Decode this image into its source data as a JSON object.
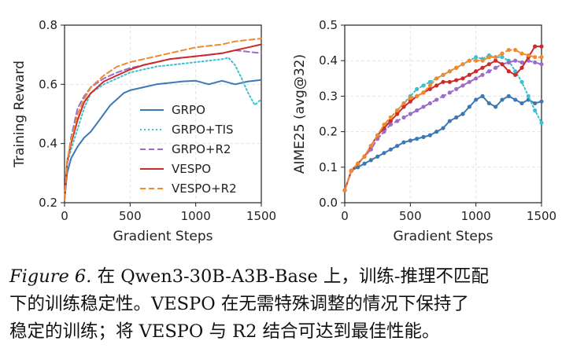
{
  "chart_data": [
    {
      "type": "line",
      "xlabel": "Gradient Steps",
      "ylabel": "Training Reward",
      "xlim": [
        0,
        1500
      ],
      "ylim": [
        0.2,
        0.8
      ],
      "xticks": [
        "0",
        "500",
        "1000",
        "1500"
      ],
      "yticks": [
        "0.2",
        "0.4",
        "0.6",
        "0.8"
      ],
      "grid": true,
      "legend": "center-right",
      "series": [
        {
          "name": "GRPO",
          "color": "#3b78b4",
          "dash": "solid",
          "markers": false,
          "x": [
            0,
            20,
            50,
            100,
            150,
            200,
            250,
            300,
            350,
            400,
            450,
            500,
            600,
            700,
            800,
            900,
            1000,
            1100,
            1200,
            1300,
            1400,
            1500
          ],
          "y": [
            0.21,
            0.3,
            0.35,
            0.39,
            0.42,
            0.44,
            0.47,
            0.5,
            0.53,
            0.55,
            0.57,
            0.58,
            0.59,
            0.6,
            0.605,
            0.61,
            0.612,
            0.6,
            0.612,
            0.6,
            0.61,
            0.615
          ]
        },
        {
          "name": "GRPO+TIS",
          "color": "#3fbfd0",
          "dash": "dotted",
          "markers": false,
          "x": [
            0,
            20,
            50,
            100,
            150,
            200,
            300,
            400,
            500,
            600,
            700,
            800,
            900,
            1000,
            1100,
            1200,
            1250,
            1300,
            1350,
            1400,
            1450,
            1500
          ],
          "y": [
            0.21,
            0.33,
            0.38,
            0.45,
            0.52,
            0.57,
            0.6,
            0.62,
            0.64,
            0.65,
            0.66,
            0.665,
            0.67,
            0.675,
            0.68,
            0.685,
            0.69,
            0.665,
            0.62,
            0.57,
            0.53,
            0.55
          ]
        },
        {
          "name": "GRPO+R2",
          "color": "#9b6cc8",
          "dash": "dashed",
          "markers": false,
          "x": [
            0,
            20,
            50,
            100,
            150,
            200,
            300,
            400,
            500,
            600,
            700,
            800,
            900,
            1000,
            1100,
            1200,
            1300,
            1400,
            1500
          ],
          "y": [
            0.21,
            0.33,
            0.42,
            0.52,
            0.56,
            0.59,
            0.62,
            0.64,
            0.655,
            0.665,
            0.675,
            0.685,
            0.69,
            0.695,
            0.7,
            0.705,
            0.715,
            0.71,
            0.705
          ]
        },
        {
          "name": "VESPO",
          "color": "#cc2b2b",
          "dash": "solid",
          "markers": false,
          "x": [
            0,
            20,
            50,
            100,
            150,
            200,
            300,
            400,
            500,
            600,
            700,
            800,
            900,
            1000,
            1100,
            1200,
            1300,
            1400,
            1500
          ],
          "y": [
            0.21,
            0.34,
            0.4,
            0.48,
            0.54,
            0.57,
            0.61,
            0.63,
            0.65,
            0.665,
            0.675,
            0.685,
            0.69,
            0.695,
            0.7,
            0.705,
            0.715,
            0.725,
            0.735
          ]
        },
        {
          "name": "VESPO+R2",
          "color": "#f08a2e",
          "dash": "dashed",
          "markers": false,
          "x": [
            0,
            20,
            50,
            100,
            150,
            200,
            300,
            400,
            500,
            600,
            700,
            800,
            900,
            1000,
            1100,
            1200,
            1300,
            1400,
            1500
          ],
          "y": [
            0.21,
            0.34,
            0.41,
            0.5,
            0.55,
            0.59,
            0.63,
            0.66,
            0.675,
            0.685,
            0.695,
            0.705,
            0.715,
            0.725,
            0.73,
            0.735,
            0.745,
            0.75,
            0.755
          ]
        }
      ]
    },
    {
      "type": "line",
      "xlabel": "Gradient Steps",
      "ylabel": "AIME25 (avg@32)",
      "xlim": [
        0,
        1500
      ],
      "ylim": [
        0.0,
        0.5
      ],
      "xticks": [
        "0",
        "500",
        "1000",
        "1500"
      ],
      "yticks": [
        "0.0",
        "0.1",
        "0.2",
        "0.3",
        "0.4",
        "0.5"
      ],
      "grid": true,
      "legend": "none",
      "series": [
        {
          "name": "GRPO",
          "color": "#3b78b4",
          "dash": "solid",
          "markers": true,
          "x": [
            0,
            50,
            100,
            150,
            200,
            250,
            300,
            350,
            400,
            450,
            500,
            550,
            600,
            650,
            700,
            750,
            800,
            850,
            900,
            950,
            1000,
            1050,
            1100,
            1150,
            1200,
            1250,
            1300,
            1350,
            1400,
            1450,
            1500
          ],
          "y": [
            0.035,
            0.09,
            0.1,
            0.11,
            0.12,
            0.13,
            0.14,
            0.15,
            0.16,
            0.17,
            0.175,
            0.18,
            0.185,
            0.19,
            0.2,
            0.21,
            0.23,
            0.24,
            0.25,
            0.27,
            0.29,
            0.3,
            0.28,
            0.27,
            0.29,
            0.3,
            0.29,
            0.28,
            0.29,
            0.28,
            0.285
          ]
        },
        {
          "name": "GRPO+TIS",
          "color": "#3fbfd0",
          "dash": "dotted",
          "markers": true,
          "x": [
            0,
            50,
            100,
            150,
            200,
            250,
            300,
            350,
            400,
            450,
            500,
            550,
            600,
            650,
            700,
            750,
            800,
            850,
            900,
            950,
            1000,
            1050,
            1100,
            1150,
            1200,
            1250,
            1300,
            1350,
            1400,
            1450,
            1500
          ],
          "y": [
            0.035,
            0.09,
            0.11,
            0.13,
            0.16,
            0.19,
            0.21,
            0.24,
            0.26,
            0.28,
            0.3,
            0.32,
            0.33,
            0.34,
            0.35,
            0.36,
            0.37,
            0.38,
            0.39,
            0.4,
            0.41,
            0.405,
            0.415,
            0.41,
            0.41,
            0.4,
            0.37,
            0.34,
            0.3,
            0.26,
            0.225
          ]
        },
        {
          "name": "GRPO+R2",
          "color": "#9b6cc8",
          "dash": "dashed",
          "markers": true,
          "x": [
            0,
            50,
            100,
            150,
            200,
            250,
            300,
            350,
            400,
            450,
            500,
            550,
            600,
            650,
            700,
            750,
            800,
            850,
            900,
            950,
            1000,
            1050,
            1100,
            1150,
            1200,
            1250,
            1300,
            1350,
            1400,
            1450,
            1500
          ],
          "y": [
            0.035,
            0.09,
            0.11,
            0.13,
            0.15,
            0.18,
            0.2,
            0.22,
            0.23,
            0.24,
            0.25,
            0.26,
            0.27,
            0.28,
            0.29,
            0.3,
            0.31,
            0.32,
            0.33,
            0.34,
            0.35,
            0.36,
            0.37,
            0.38,
            0.39,
            0.395,
            0.4,
            0.395,
            0.4,
            0.395,
            0.39
          ]
        },
        {
          "name": "VESPO",
          "color": "#cc2b2b",
          "dash": "solid",
          "markers": true,
          "x": [
            0,
            50,
            100,
            150,
            200,
            250,
            300,
            350,
            400,
            450,
            500,
            550,
            600,
            650,
            700,
            750,
            800,
            850,
            900,
            950,
            1000,
            1050,
            1100,
            1150,
            1200,
            1250,
            1300,
            1350,
            1400,
            1450,
            1500
          ],
          "y": [
            0.035,
            0.09,
            0.11,
            0.13,
            0.16,
            0.19,
            0.21,
            0.23,
            0.25,
            0.27,
            0.285,
            0.3,
            0.31,
            0.32,
            0.33,
            0.34,
            0.34,
            0.345,
            0.35,
            0.36,
            0.37,
            0.38,
            0.39,
            0.4,
            0.39,
            0.37,
            0.36,
            0.38,
            0.41,
            0.44,
            0.44
          ]
        },
        {
          "name": "VESPO+R2",
          "color": "#f08a2e",
          "dash": "dashed",
          "markers": true,
          "x": [
            0,
            50,
            100,
            150,
            200,
            250,
            300,
            350,
            400,
            450,
            500,
            550,
            600,
            650,
            700,
            750,
            800,
            850,
            900,
            950,
            1000,
            1050,
            1100,
            1150,
            1200,
            1250,
            1300,
            1350,
            1400,
            1450,
            1500
          ],
          "y": [
            0.035,
            0.09,
            0.11,
            0.13,
            0.16,
            0.19,
            0.22,
            0.24,
            0.26,
            0.28,
            0.295,
            0.3,
            0.31,
            0.33,
            0.35,
            0.36,
            0.37,
            0.38,
            0.39,
            0.4,
            0.4,
            0.4,
            0.41,
            0.41,
            0.42,
            0.43,
            0.43,
            0.42,
            0.415,
            0.41,
            0.41
          ]
        }
      ]
    }
  ],
  "caption": {
    "figure_label": "Figure 6.",
    "line1": "在 Qwen3-30B-A3B-Base 上，训练-推理不匹配",
    "line2": "下的训练稳定性。VESPO 在无需特殊调整的情况下保持了",
    "line3": "稳定的训练；将 VESPO 与 R2 结合可达到最佳性能。"
  }
}
